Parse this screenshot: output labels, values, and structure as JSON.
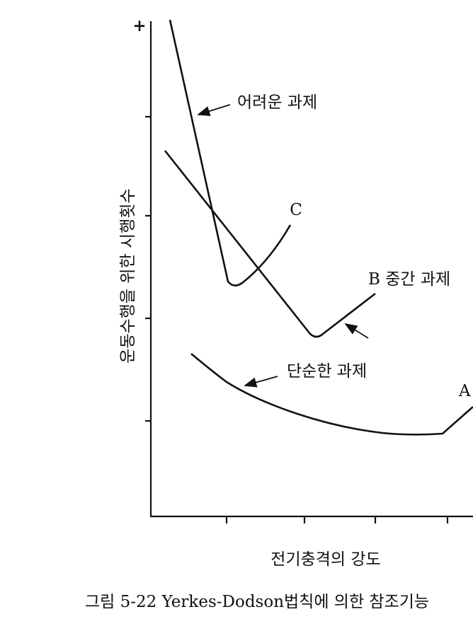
{
  "axes": {
    "y_top_mark": "+",
    "y_label": "운동수행을 위한 시행횟수",
    "x_label": "전기충격의 강도"
  },
  "curves": [
    {
      "label": "어려운 과제",
      "end_label": "C"
    },
    {
      "label": "B 중간 과제"
    },
    {
      "label": "단순한 과제",
      "end_label": "A"
    }
  ],
  "caption": "그림 5-22 Yerkes-Dodson법칙에 의한 참조기능"
}
